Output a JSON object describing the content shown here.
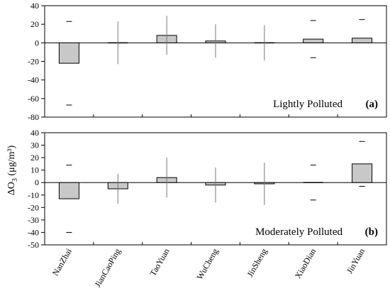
{
  "chart_data": [
    {
      "type": "bar",
      "panel_label": "Lightly Polluted",
      "panel_tag": "(a)",
      "categories": [
        "NanZhai",
        "JianCaoPing",
        "TaoYuan",
        "WuCheng",
        "JinSheng",
        "XiaoDian",
        "JinYuan"
      ],
      "values": [
        -22,
        0,
        8,
        2,
        0,
        4,
        5
      ],
      "error_upper": [
        23,
        23,
        29,
        20,
        19,
        24,
        25
      ],
      "error_lower": [
        -67,
        -23,
        -13,
        -16,
        -19,
        -16,
        null
      ],
      "error_style": [
        "caps",
        "line",
        "line",
        "line",
        "line",
        "caps",
        "caps"
      ],
      "ylim": [
        -80,
        40
      ],
      "yticks": [
        -80,
        -60,
        -40,
        -20,
        0,
        20,
        40
      ],
      "ylabel": "ΔO3 (μg/m³)",
      "xlabel": "",
      "grid": false
    },
    {
      "type": "bar",
      "panel_label": "Moderately Polluted",
      "panel_tag": "(b)",
      "categories": [
        "NanZhai",
        "JianCaoPing",
        "TaoYuan",
        "WuCheng",
        "JinSheng",
        "XiaoDian",
        "JinYuan"
      ],
      "values": [
        -13,
        -5,
        4,
        -2,
        -1,
        0,
        15
      ],
      "error_upper": [
        14,
        7,
        20,
        12,
        16,
        14,
        33
      ],
      "error_lower": [
        -40,
        -17,
        -12,
        -16,
        -18,
        -14,
        -3
      ],
      "error_style": [
        "caps",
        "line",
        "line",
        "line",
        "line",
        "caps",
        "caps"
      ],
      "ylim": [
        -50,
        40
      ],
      "yticks": [
        -50,
        -40,
        -30,
        -20,
        -10,
        0,
        10,
        20,
        30,
        40
      ],
      "ylabel": "ΔO3 (μg/m³)",
      "xlabel": "",
      "grid": false
    }
  ],
  "colors": {
    "bar_fill": "#c8c8c8",
    "bar_stroke": "#000000",
    "error_bar": "#777777",
    "axis": "#000000"
  }
}
